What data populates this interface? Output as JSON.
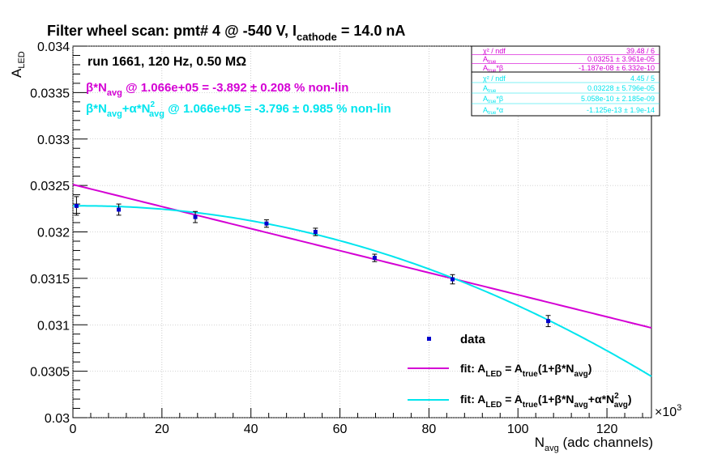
{
  "chart_data": {
    "type": "scatter",
    "title": "Filter wheel scan: pmt#   4 @  -540 V, I",
    "title_sub": "cathode",
    "title_tail": " = 14.0 nA",
    "xlabel_main": "N",
    "xlabel_sub": "avg",
    "xlabel_tail": " (adc channels)",
    "ylabel_main": "A",
    "ylabel_sub": "LED",
    "x_multiplier": "×10",
    "x_multiplier_exp": "3",
    "xlim": [
      0,
      130
    ],
    "ylim": [
      0.03,
      0.034
    ],
    "x_ticks": [
      "0",
      "20",
      "40",
      "60",
      "80",
      "100",
      "120"
    ],
    "y_ticks": [
      "0.03",
      "0.0305",
      "0.031",
      "0.0315",
      "0.032",
      "0.0325",
      "0.033",
      "0.0335",
      "0.034"
    ],
    "grid": true,
    "annotations": {
      "run": "run 1661, 120 Hz, 0.50 MΩ",
      "lin": {
        "beta": "β",
        "mult": "*N",
        "sub": "avg",
        "rest": " @ 1.066e+05 = -3.892 ± 0.208 % non-lin"
      },
      "quad": {
        "beta": "β",
        "mult": "*N",
        "sub1": "avg",
        "plus": "+α*N",
        "sup": "2",
        "sub2": "avg",
        "rest": " @ 1.066e+05 = -3.796 ± 0.985 % non-lin"
      }
    },
    "data_points": [
      {
        "x": 0.8,
        "y": 0.03228,
        "err": 0.0001
      },
      {
        "x": 10.3,
        "y": 0.03224,
        "err": 6e-05
      },
      {
        "x": 27.5,
        "y": 0.03216,
        "err": 6e-05
      },
      {
        "x": 43.5,
        "y": 0.03209,
        "err": 4e-05
      },
      {
        "x": 54.5,
        "y": 0.032,
        "err": 4e-05
      },
      {
        "x": 67.8,
        "y": 0.03172,
        "err": 4e-05
      },
      {
        "x": 85.3,
        "y": 0.03149,
        "err": 5e-05
      },
      {
        "x": 106.8,
        "y": 0.03104,
        "err": 6e-05
      }
    ],
    "fits": {
      "linear": {
        "color": "#d400d4",
        "a_true": 0.03251,
        "beta": -1.187e-08
      },
      "quadratic": {
        "color": "#00e5ee",
        "a_true": 0.03228,
        "beta": 5.058e-10,
        "alpha": -1.125e-13
      }
    },
    "stat_boxes": [
      {
        "color": "#d400d4",
        "rows": [
          {
            "label": "χ² / ndf",
            "value": "39.48 / 6"
          },
          {
            "label": "A",
            "label_sub": "true",
            "value": "0.03251 ± 3.961e-05"
          },
          {
            "label": "A",
            "label_sub": "true",
            "label_tail": "*β",
            "value": "-1.187e-08 ± 6.332e-10"
          }
        ]
      },
      {
        "color": "#00e5ee",
        "rows": [
          {
            "label": "χ² / ndf",
            "value": "4.45 / 5"
          },
          {
            "label": "A",
            "label_sub": "true",
            "value": "0.03228 ± 5.796e-05"
          },
          {
            "label": "A",
            "label_sub": "true",
            "label_tail": "*β",
            "value": "5.058e-10 ± 2.185e-09"
          },
          {
            "label": "A",
            "label_sub": "true",
            "label_tail": "*α",
            "value": "-1.125e-13 ± 1.9e-14"
          }
        ]
      }
    ],
    "legend": {
      "placement": "bottom-right",
      "data_label": "data",
      "lin_label": {
        "a": "fit: A",
        "s1": "LED",
        "b": " = A",
        "s2": "true",
        "c": "(1+β*N",
        "s3": "avg",
        "d": ")"
      },
      "quad_label": {
        "a": "fit: A",
        "s1": "LED",
        "b": " = A",
        "s2": "true",
        "c": "(1+β*N",
        "s3": "avg",
        "d": "+α*N",
        "sup": "2",
        "s4": "avg",
        "e": ")"
      }
    }
  }
}
